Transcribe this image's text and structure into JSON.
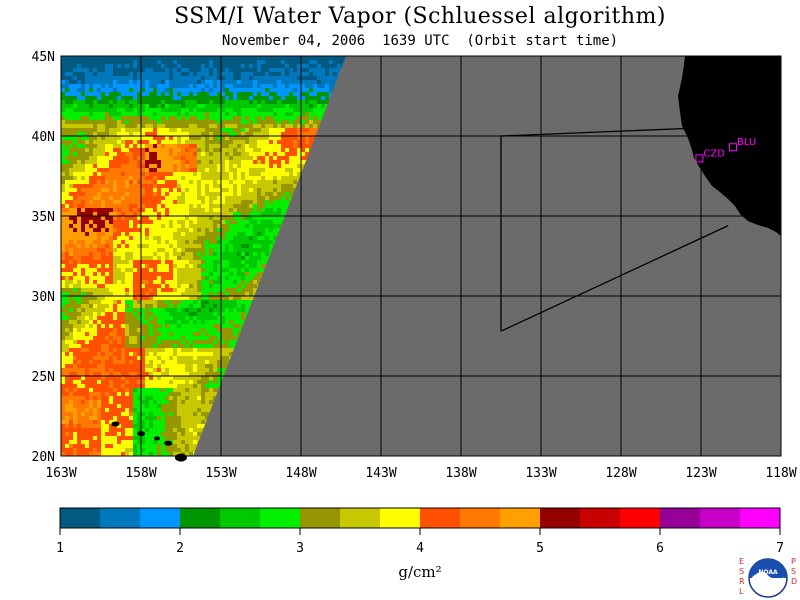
{
  "title": "SSM/I Water Vapor (Schluessel algorithm)",
  "subtitle": "November 04, 2006  1639 UTC  (Orbit start time)",
  "map": {
    "lat_labels": [
      "45N",
      "40N",
      "35N",
      "30N",
      "25N",
      "20N"
    ],
    "lon_labels": [
      "163W",
      "158W",
      "153W",
      "148W",
      "143W",
      "138W",
      "133W",
      "128W",
      "123W",
      "118W"
    ],
    "lat_range": [
      20,
      45
    ],
    "lon_range": [
      -163,
      -118
    ],
    "stations": [
      {
        "name": "CZD",
        "lon": -123.1,
        "lat": 38.6
      },
      {
        "name": "BLU",
        "lon": -121.0,
        "lat": 39.3
      }
    ],
    "no_data_color": "#6b6b6b",
    "land_color": "#000000",
    "station_color": "#ff00ff"
  },
  "colorbar": {
    "ticks": [
      "1",
      "2",
      "3",
      "4",
      "5",
      "6",
      "7"
    ],
    "unit": "g/cm²",
    "colors": [
      "#005a82",
      "#0078be",
      "#0096ff",
      "#009600",
      "#00c800",
      "#00f000",
      "#969600",
      "#c8c800",
      "#ffff00",
      "#ff5000",
      "#ff7800",
      "#ffa000",
      "#960000",
      "#c80000",
      "#ff0000",
      "#960096",
      "#c800c8",
      "#ff00ff"
    ]
  },
  "logo": {
    "left_text": "ESRL",
    "right_text": "PSD",
    "center_text": "NOAA"
  }
}
